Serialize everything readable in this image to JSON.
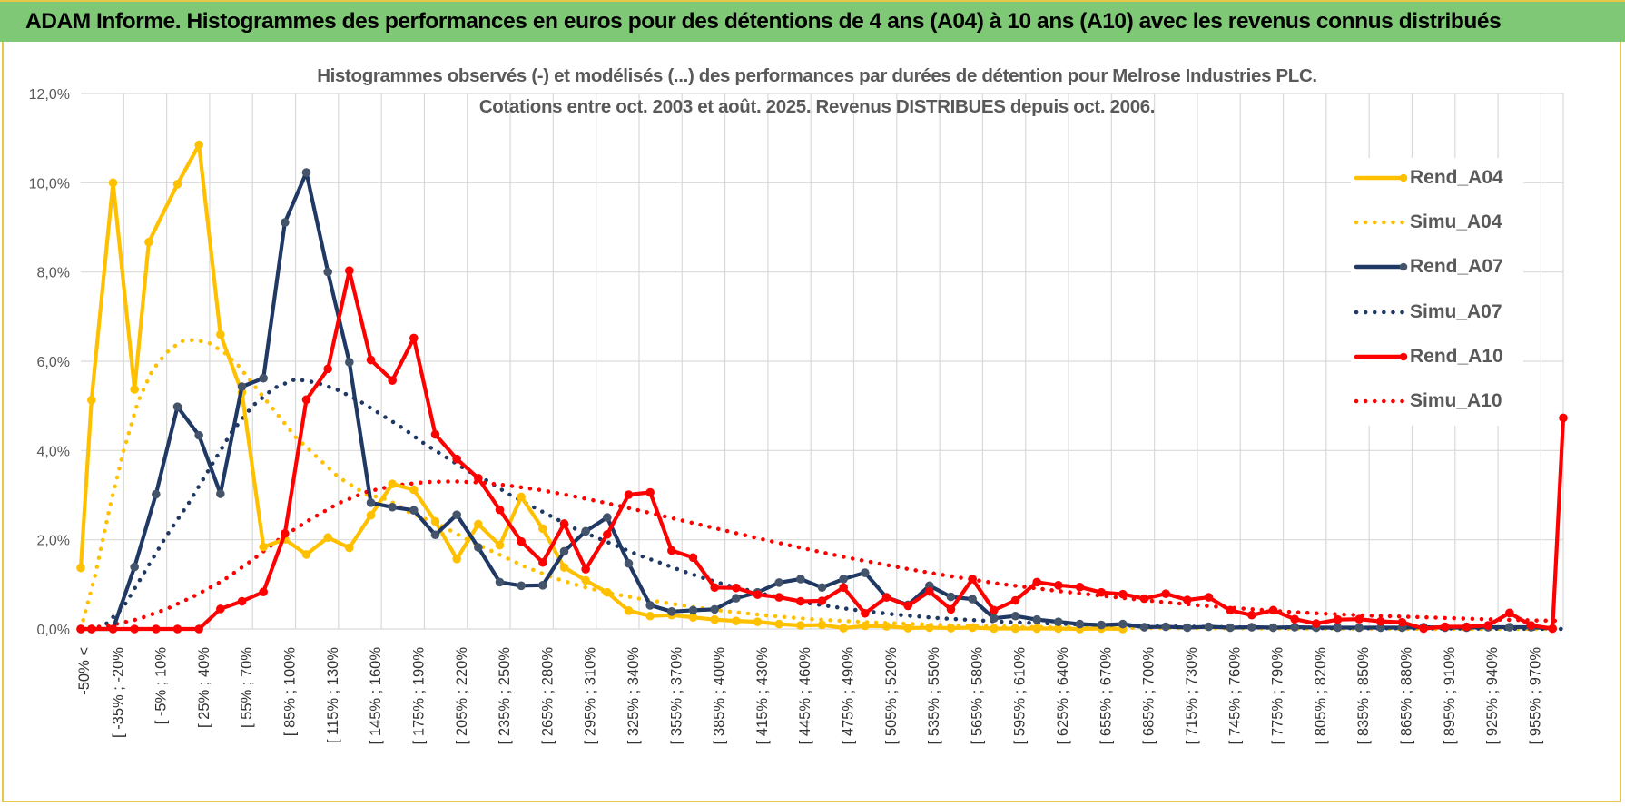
{
  "header": {
    "title": "ADAM Informe. Histogrammes des performances en euros pour des détentions de 4 ans (A04) à 10 ans (A10) avec les revenus connus distribués"
  },
  "colors": {
    "header_bg": "#7ec876",
    "frame_border": "#e6c74a",
    "A04": "#ffc000",
    "A07": "#1f3864",
    "A10": "#ff0000",
    "grid": "#d9d9d9",
    "text": "#595959"
  },
  "chart_data": {
    "type": "line",
    "title": "Histogrammes observés (-) et modélisés (...) des performances par durées de détention pour Melrose Industries PLC.",
    "subtitle": "Cotations entre oct. 2003 et août. 2025. Revenus DISTRIBUES depuis oct. 2006.",
    "xlabel": "",
    "ylabel": "",
    "ylim": [
      0,
      0.12
    ],
    "y_ticks": [
      "0,0%",
      "2,0%",
      "4,0%",
      "6,0%",
      "8,0%",
      "10,0%",
      "12,0%"
    ],
    "grid": true,
    "legend_position": "right",
    "x_labels": [
      "-50% <",
      "[ -35% ; -20%",
      "[ -5% ; 10%",
      "[ 25% ; 40%",
      "[ 55% ; 70%",
      "[ 85% ; 100%",
      "[ 115% ; 130%",
      "[ 145% ; 160%",
      "[ 175% ; 190%",
      "[ 205% ; 220%",
      "[ 235% ; 250%",
      "[ 265% ; 280%",
      "[ 295% ; 310%",
      "[ 325% ; 340%",
      "[ 355% ; 370%",
      "[ 385% ; 400%",
      "[ 415% ; 430%",
      "[ 445% ; 460%",
      "[ 475% ; 490%",
      "[ 505% ; 520%",
      "[ 535% ; 550%",
      "[ 565% ; 580%",
      "[ 595% ; 610%",
      "[ 625% ; 640%",
      "[ 655% ; 670%",
      "[ 685% ; 700%",
      "[ 715% ; 730%",
      "[ 745% ; 760%",
      "[ 775% ; 790%",
      "[ 805% ; 820%",
      "[ 835% ; 850%",
      "[ 865% ; 880%",
      "[ 895% ; 910%",
      "[ 925% ; 940%",
      "[ 955% ; 970%"
    ],
    "x_range": [
      -50,
      985
    ],
    "series": [
      {
        "name": "Rend_A04",
        "style": "solid",
        "color": "#ffc000",
        "x": [
          -50,
          -42.5,
          -27.5,
          -12.5,
          -2.5,
          17.5,
          32.5,
          47.5,
          62.5,
          77.5,
          92.5,
          107.5,
          122.5,
          137.5,
          152.5,
          167.5,
          182.5,
          197.5,
          212.5,
          227.5,
          242.5,
          257.5,
          272.5,
          287.5,
          302.5,
          317.5,
          332.5,
          347.5,
          362.5,
          377.5,
          392.5,
          407.5,
          422.5,
          437.5,
          452.5,
          467.5,
          482.5,
          497.5,
          512.5,
          527.5,
          542.5,
          557.5,
          572.5,
          587.5,
          602.5,
          617.5,
          632.5,
          647.5,
          662.5,
          677.5
        ],
        "y": [
          0.0137,
          0.0513,
          0.1,
          0.0537,
          0.0867,
          0.0997,
          0.1085,
          0.066,
          0.053,
          0.0184,
          0.0201,
          0.0167,
          0.0205,
          0.0182,
          0.0255,
          0.0325,
          0.0312,
          0.0241,
          0.0157,
          0.0235,
          0.0188,
          0.0296,
          0.0225,
          0.0138,
          0.0109,
          0.0082,
          0.0041,
          0.0029,
          0.0031,
          0.0026,
          0.0021,
          0.0018,
          0.0016,
          0.0011,
          0.0008,
          0.0009,
          0.0002,
          0.0007,
          0.0006,
          0.0002,
          0.0003,
          0.0002,
          0.0003,
          0.0001,
          0.0001,
          0.0001,
          0.0001,
          0.0,
          0.0001,
          0.0
        ]
      },
      {
        "name": "Simu_A04",
        "style": "dotted",
        "color": "#ffc000",
        "x": [
          -50,
          -40,
          -30,
          -20,
          -10,
          0,
          10,
          20,
          30,
          40,
          50,
          60,
          70,
          80,
          90,
          100,
          110,
          120,
          130,
          140,
          150,
          160,
          170,
          180,
          200,
          220,
          240,
          260,
          280,
          300,
          320,
          340,
          360,
          380,
          400,
          430,
          460,
          500,
          550,
          600,
          700,
          800,
          900,
          985
        ],
        "y": [
          0.0,
          0.012,
          0.027,
          0.04,
          0.051,
          0.058,
          0.062,
          0.0645,
          0.0648,
          0.064,
          0.062,
          0.059,
          0.055,
          0.051,
          0.047,
          0.043,
          0.04,
          0.037,
          0.034,
          0.032,
          0.03,
          0.0295,
          0.028,
          0.026,
          0.0235,
          0.02,
          0.017,
          0.014,
          0.0115,
          0.0095,
          0.008,
          0.0068,
          0.0058,
          0.0048,
          0.004,
          0.003,
          0.0022,
          0.0015,
          0.0009,
          0.0005,
          0.0002,
          0.0001,
          0.0,
          0.0
        ]
      },
      {
        "name": "Rend_A07",
        "style": "solid",
        "color": "#1f3864",
        "x": [
          -50,
          -42.5,
          -27.5,
          -12.5,
          2.5,
          17.5,
          32.5,
          47.5,
          62.5,
          77.5,
          92.5,
          107.5,
          122.5,
          137.5,
          152.5,
          167.5,
          182.5,
          197.5,
          212.5,
          227.5,
          242.5,
          257.5,
          272.5,
          287.5,
          302.5,
          317.5,
          332.5,
          347.5,
          362.5,
          377.5,
          392.5,
          407.5,
          422.5,
          437.5,
          452.5,
          467.5,
          482.5,
          497.5,
          512.5,
          527.5,
          542.5,
          557.5,
          572.5,
          587.5,
          602.5,
          617.5,
          632.5,
          647.5,
          662.5,
          677.5,
          692.5,
          707.5,
          722.5,
          737.5,
          752.5,
          767.5,
          782.5,
          797.5,
          812.5,
          827.5,
          842.5,
          857.5,
          872.5,
          887.5,
          902.5,
          917.5,
          932.5,
          947.5,
          962.5,
          977.5
        ],
        "y": [
          0.0,
          0.0,
          0.0,
          0.0139,
          0.0302,
          0.0498,
          0.0434,
          0.0303,
          0.0543,
          0.0562,
          0.0911,
          0.1023,
          0.08,
          0.0598,
          0.0283,
          0.0273,
          0.0266,
          0.0211,
          0.0256,
          0.0183,
          0.0105,
          0.0097,
          0.0098,
          0.0174,
          0.0219,
          0.025,
          0.0147,
          0.0053,
          0.0039,
          0.0042,
          0.0044,
          0.0069,
          0.0082,
          0.0104,
          0.0112,
          0.0093,
          0.0112,
          0.0126,
          0.0071,
          0.0054,
          0.0097,
          0.0072,
          0.0067,
          0.0024,
          0.0029,
          0.0021,
          0.0016,
          0.0011,
          0.0009,
          0.0011,
          0.0004,
          0.0005,
          0.0003,
          0.0005,
          0.0003,
          0.0004,
          0.0003,
          0.0004,
          0.0003,
          0.0003,
          0.0003,
          0.0003,
          0.0003,
          0.0004,
          0.0003,
          0.0003,
          0.0004,
          0.0004,
          0.0004,
          0.0001
        ]
      },
      {
        "name": "Simu_A07",
        "style": "dotted",
        "color": "#1f3864",
        "x": [
          -50,
          -35,
          -20,
          -5,
          10,
          25,
          40,
          55,
          70,
          85,
          100,
          115,
          130,
          145,
          160,
          175,
          190,
          205,
          220,
          235,
          250,
          265,
          280,
          295,
          310,
          325,
          340,
          355,
          370,
          385,
          400,
          430,
          460,
          490,
          520,
          550,
          600,
          650,
          700,
          800,
          900,
          985
        ],
        "y": [
          0.0,
          0.0003,
          0.005,
          0.013,
          0.021,
          0.028,
          0.036,
          0.044,
          0.05,
          0.054,
          0.056,
          0.0552,
          0.0535,
          0.051,
          0.048,
          0.045,
          0.0415,
          0.0385,
          0.0355,
          0.033,
          0.03,
          0.0275,
          0.025,
          0.0225,
          0.0205,
          0.0185,
          0.0165,
          0.0148,
          0.013,
          0.0114,
          0.0099,
          0.0076,
          0.0057,
          0.0043,
          0.0032,
          0.0024,
          0.0015,
          0.001,
          0.0006,
          0.0002,
          0.0001,
          0.0
        ]
      },
      {
        "name": "Rend_A10",
        "style": "solid",
        "color": "#ff0000",
        "x": [
          -50,
          -42.5,
          -27.5,
          -12.5,
          2.5,
          17.5,
          32.5,
          47.5,
          62.5,
          77.5,
          92.5,
          107.5,
          122.5,
          137.5,
          152.5,
          167.5,
          182.5,
          197.5,
          212.5,
          227.5,
          242.5,
          257.5,
          272.5,
          287.5,
          302.5,
          317.5,
          332.5,
          347.5,
          362.5,
          377.5,
          392.5,
          407.5,
          422.5,
          437.5,
          452.5,
          467.5,
          482.5,
          497.5,
          512.5,
          527.5,
          542.5,
          557.5,
          572.5,
          587.5,
          602.5,
          617.5,
          632.5,
          647.5,
          662.5,
          677.5,
          692.5,
          707.5,
          722.5,
          737.5,
          752.5,
          767.5,
          782.5,
          797.5,
          812.5,
          827.5,
          842.5,
          857.5,
          872.5,
          887.5,
          902.5,
          917.5,
          932.5,
          947.5,
          962.5,
          977.5,
          985
        ],
        "y": [
          0.0,
          0.0,
          0.0,
          0.0,
          0.0,
          0.0,
          0.0,
          0.0045,
          0.0062,
          0.0083,
          0.0214,
          0.0514,
          0.0583,
          0.0803,
          0.0603,
          0.0557,
          0.0652,
          0.0436,
          0.0381,
          0.0338,
          0.0267,
          0.0196,
          0.0149,
          0.0236,
          0.0134,
          0.0212,
          0.0301,
          0.0306,
          0.0176,
          0.016,
          0.0093,
          0.0092,
          0.0077,
          0.0071,
          0.0062,
          0.0063,
          0.0093,
          0.0035,
          0.0071,
          0.0052,
          0.0084,
          0.0044,
          0.0112,
          0.0042,
          0.0064,
          0.0105,
          0.0098,
          0.0094,
          0.0082,
          0.0078,
          0.0068,
          0.0079,
          0.0065,
          0.0071,
          0.0042,
          0.0031,
          0.0042,
          0.0022,
          0.0012,
          0.0021,
          0.0022,
          0.0017,
          0.0015,
          0.0001,
          0.0005,
          0.0005,
          0.0008,
          0.0036,
          0.0008,
          0.0001,
          0.0473
        ]
      },
      {
        "name": "Simu_A10",
        "style": "dotted",
        "color": "#ff0000",
        "x": [
          -50,
          -30,
          -10,
          10,
          30,
          50,
          70,
          90,
          110,
          130,
          150,
          170,
          190,
          210,
          230,
          250,
          270,
          290,
          310,
          330,
          350,
          370,
          390,
          410,
          430,
          450,
          470,
          490,
          510,
          530,
          550,
          570,
          590,
          610,
          630,
          650,
          670,
          700,
          730,
          760,
          790,
          820,
          850,
          880,
          910,
          940,
          970,
          985
        ],
        "y": [
          0.0,
          0.0008,
          0.0022,
          0.0045,
          0.0075,
          0.011,
          0.0155,
          0.0205,
          0.0245,
          0.0282,
          0.0308,
          0.0322,
          0.0329,
          0.0331,
          0.0328,
          0.0321,
          0.0312,
          0.03,
          0.0287,
          0.0273,
          0.0258,
          0.0243,
          0.0228,
          0.0213,
          0.0198,
          0.0184,
          0.017,
          0.0157,
          0.0145,
          0.0133,
          0.0122,
          0.0112,
          0.0102,
          0.0094,
          0.0086,
          0.0079,
          0.0072,
          0.0062,
          0.0053,
          0.0046,
          0.0039,
          0.0034,
          0.003,
          0.0027,
          0.0024,
          0.0021,
          0.0019,
          0.0018
        ]
      }
    ]
  }
}
